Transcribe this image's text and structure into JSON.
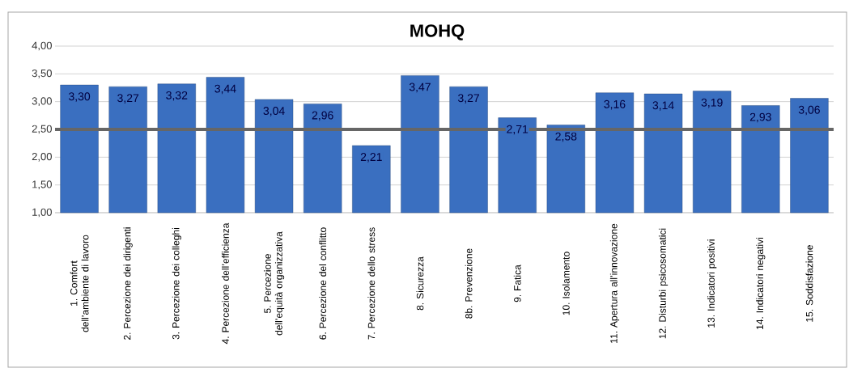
{
  "chart_data": {
    "type": "bar",
    "title": "MOHQ",
    "categories": [
      "1. Comfort dell’ambiente di lavoro",
      "2. Percezione dei dirigenti",
      "3. Percezione dei colleghi",
      "4. Percezione dell’efficienza",
      "5. Percezione dell’equità organizzativa",
      "6. Percezione del conflitto",
      "7. Percezione dello stress",
      "8. Sicurezza",
      "8b. Prevenzione",
      "9. Fatica",
      "10. Isolamento",
      "11. Apertura all’innovazione",
      "12. Disturbi psicosomatici",
      "13. Indicatori positivi",
      "14. Indicatori negativi",
      "15. Soddisfazione"
    ],
    "values": [
      3.3,
      3.27,
      3.32,
      3.44,
      3.04,
      2.96,
      2.21,
      3.47,
      3.27,
      2.71,
      2.58,
      3.16,
      3.14,
      3.19,
      2.93,
      3.06
    ],
    "value_labels": [
      "3,30",
      "3,27",
      "3,32",
      "3,44",
      "3,04",
      "2,96",
      "2,21",
      "3,47",
      "3,27",
      "2,71",
      "2,58",
      "3,16",
      "3,14",
      "3,19",
      "2,93",
      "3,06"
    ],
    "color": "#3a6fc0",
    "ylim": [
      1,
      4
    ],
    "yticks": [
      {
        "value": 1,
        "label": "1,00"
      },
      {
        "value": 1.5,
        "label": "1,50"
      },
      {
        "value": 2,
        "label": "2,00"
      },
      {
        "value": 2.5,
        "label": "2,50"
      },
      {
        "value": 3,
        "label": "3,00"
      },
      {
        "value": 3.5,
        "label": "3,50"
      },
      {
        "value": 4,
        "label": "4,00"
      }
    ],
    "grid": "y",
    "ref_lines": [
      {
        "axis": "y",
        "value": 2.5,
        "color": "#666666"
      }
    ]
  }
}
